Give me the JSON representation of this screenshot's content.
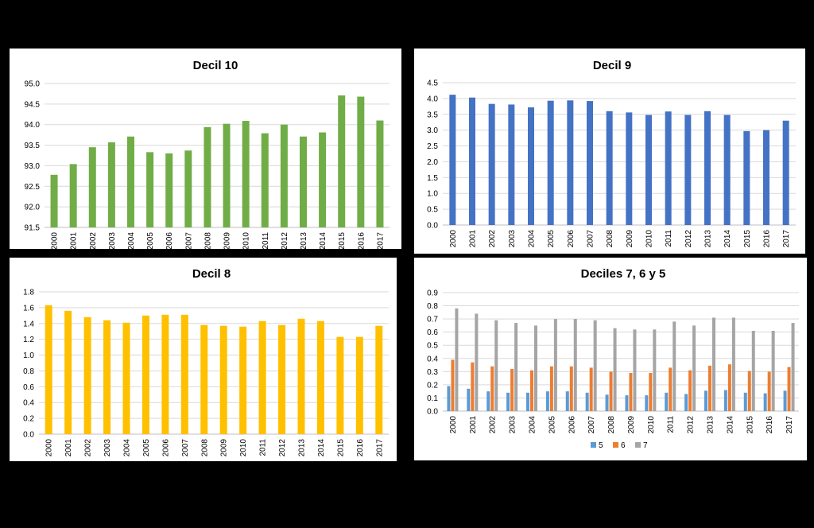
{
  "chart_data": [
    {
      "id": "d10",
      "type": "bar",
      "title": "Decil 10",
      "categories": [
        "2000",
        "2001",
        "2002",
        "2003",
        "2004",
        "2005",
        "2006",
        "2007",
        "2008",
        "2009",
        "2010",
        "2011",
        "2012",
        "2013",
        "2014",
        "2015",
        "2016",
        "2017"
      ],
      "series": [
        {
          "values": [
            92.78,
            93.04,
            93.45,
            93.57,
            93.71,
            93.33,
            93.3,
            93.37,
            93.94,
            94.02,
            94.09,
            93.79,
            94.0,
            93.71,
            93.81,
            94.71,
            94.68,
            94.1
          ],
          "color": "#70AD47"
        }
      ],
      "yticks": [
        "91.5",
        "92.0",
        "92.5",
        "93.0",
        "93.5",
        "94.0",
        "94.5",
        "95.0"
      ],
      "ylim": [
        91.5,
        95.0
      ],
      "grid": true,
      "legend": "none"
    },
    {
      "id": "d9",
      "type": "bar",
      "title": "Decil 9",
      "categories": [
        "2000",
        "2001",
        "2002",
        "2003",
        "2004",
        "2005",
        "2006",
        "2007",
        "2008",
        "2009",
        "2010",
        "2011",
        "2012",
        "2013",
        "2014",
        "2015",
        "2016",
        "2017"
      ],
      "series": [
        {
          "values": [
            4.12,
            4.03,
            3.83,
            3.81,
            3.72,
            3.93,
            3.94,
            3.92,
            3.6,
            3.56,
            3.48,
            3.59,
            3.48,
            3.6,
            3.48,
            2.97,
            3.0,
            3.3
          ],
          "color": "#4472C4"
        }
      ],
      "yticks": [
        "0.0",
        "0.5",
        "1.0",
        "1.5",
        "2.0",
        "2.5",
        "3.0",
        "3.5",
        "4.0",
        "4.5"
      ],
      "ylim": [
        0,
        4.5
      ],
      "grid": true,
      "legend": "none"
    },
    {
      "id": "d8",
      "type": "bar",
      "title": "Decil 8",
      "categories": [
        "2000",
        "2001",
        "2002",
        "2003",
        "2004",
        "2005",
        "2006",
        "2007",
        "2008",
        "2009",
        "2010",
        "2011",
        "2012",
        "2013",
        "2014",
        "2015",
        "2016",
        "2017"
      ],
      "series": [
        {
          "values": [
            1.63,
            1.56,
            1.48,
            1.44,
            1.41,
            1.5,
            1.51,
            1.51,
            1.38,
            1.37,
            1.36,
            1.43,
            1.38,
            1.46,
            1.43,
            1.23,
            1.23,
            1.37
          ],
          "color": "#FFC000"
        }
      ],
      "yticks": [
        "0.0",
        "0.2",
        "0.4",
        "0.6",
        "0.8",
        "1.0",
        "1.2",
        "1.4",
        "1.6",
        "1.8"
      ],
      "ylim": [
        0,
        1.8
      ],
      "grid": true,
      "legend": "none"
    },
    {
      "id": "d765",
      "type": "bar",
      "title": "Deciles 7, 6 y 5",
      "categories": [
        "2000",
        "2001",
        "2002",
        "2003",
        "2004",
        "2005",
        "2006",
        "2007",
        "2008",
        "2009",
        "2010",
        "2011",
        "2012",
        "2013",
        "2014",
        "2015",
        "2016",
        "2017"
      ],
      "series": [
        {
          "name": "5",
          "values": [
            0.19,
            0.17,
            0.15,
            0.14,
            0.14,
            0.15,
            0.15,
            0.14,
            0.125,
            0.12,
            0.12,
            0.14,
            0.13,
            0.155,
            0.16,
            0.14,
            0.135,
            0.155
          ],
          "color": "#5B9BD5"
        },
        {
          "name": "6",
          "values": [
            0.39,
            0.37,
            0.34,
            0.32,
            0.31,
            0.34,
            0.34,
            0.33,
            0.3,
            0.29,
            0.29,
            0.33,
            0.31,
            0.345,
            0.355,
            0.305,
            0.3,
            0.335
          ],
          "color": "#ED7D31"
        },
        {
          "name": "7",
          "values": [
            0.78,
            0.74,
            0.69,
            0.67,
            0.65,
            0.7,
            0.7,
            0.69,
            0.63,
            0.62,
            0.62,
            0.68,
            0.65,
            0.71,
            0.71,
            0.61,
            0.61,
            0.67
          ],
          "color": "#A5A5A5"
        }
      ],
      "yticks": [
        "0.0",
        "0.1",
        "0.2",
        "0.3",
        "0.4",
        "0.5",
        "0.6",
        "0.7",
        "0.8",
        "0.9"
      ],
      "ylim": [
        0,
        0.9
      ],
      "grid": true,
      "legend": "bottom"
    }
  ]
}
